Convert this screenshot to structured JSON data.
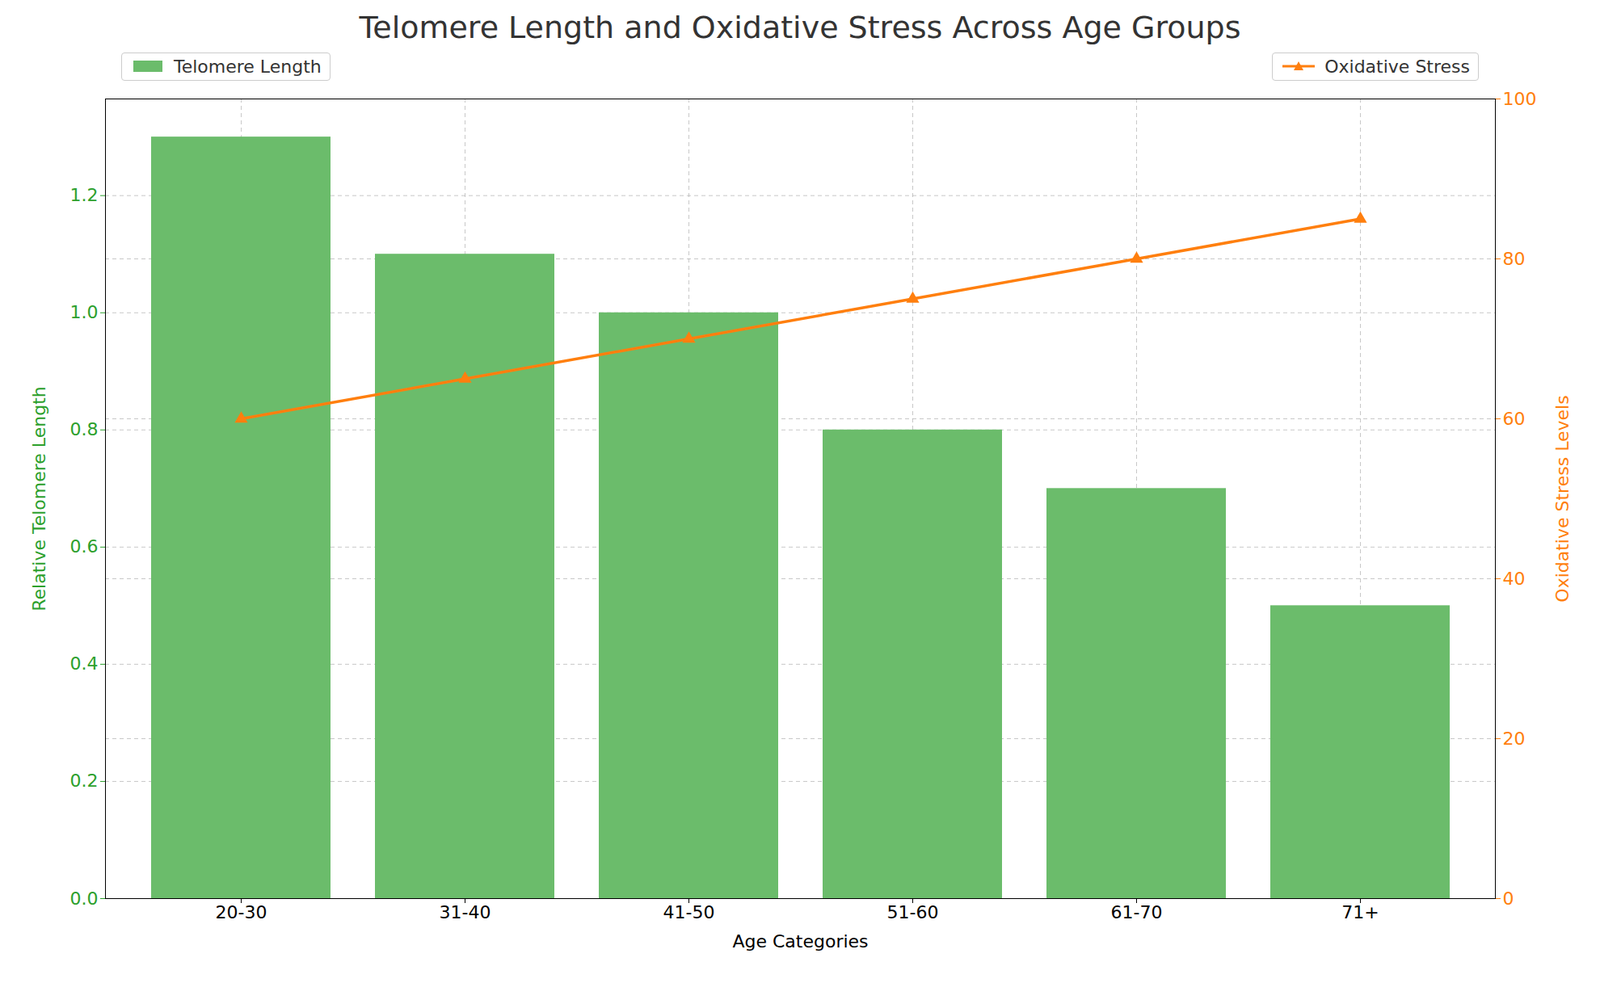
{
  "chart_data": {
    "type": "bar",
    "title": "Telomere Length and Oxidative Stress Across Age Groups",
    "x_label": "Age Categories",
    "y_label": "Relative Telomere Length",
    "y2_label": "Oxidative Stress Levels",
    "categories": [
      "20-30",
      "31-40",
      "41-50",
      "51-60",
      "61-70",
      "71+"
    ],
    "series": [
      {
        "name": "Telomere Length",
        "type": "bar",
        "color": "#6bbc6b",
        "values": [
          1.3,
          1.1,
          1.0,
          0.8,
          0.7,
          0.5
        ]
      },
      {
        "name": "Oxidative Stress",
        "type": "line",
        "color": "#ff7f0e",
        "marker": "triangle",
        "axis": "y2",
        "values": [
          60,
          65,
          70,
          75,
          80,
          85
        ]
      }
    ],
    "ylim": [
      0,
      1.365
    ],
    "yticks": [
      {
        "value": 0,
        "label": "0.0"
      },
      0.2,
      0.4,
      0.6,
      0.8,
      {
        "value": 1,
        "label": "1.0"
      },
      1.2
    ],
    "y2lim": [
      0,
      100
    ],
    "y2ticks": [
      0,
      20,
      40,
      60,
      80,
      100
    ],
    "grid": true
  }
}
